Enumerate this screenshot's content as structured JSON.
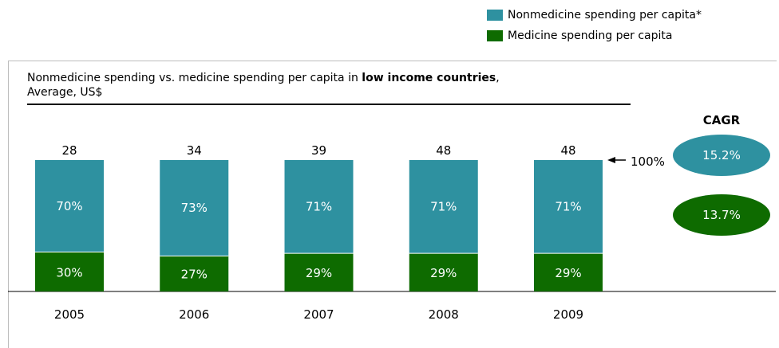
{
  "legend": {
    "items": [
      {
        "label": "Nonmedicine spending per capita*",
        "color": "#2e91a0"
      },
      {
        "label": "Medicine spending per capita",
        "color": "#0e6b00"
      }
    ]
  },
  "title": {
    "prefix": "Nonmedicine spending vs. medicine spending per capita in ",
    "bold": "low income countries",
    "suffix": ",",
    "line2": "Average, US$"
  },
  "annotation": {
    "arrow_label": "100%"
  },
  "cagr": {
    "heading": "CAGR",
    "values": [
      {
        "label": "15.2%",
        "color": "#2e91a0"
      },
      {
        "label": "13.7%",
        "color": "#0e6b00"
      }
    ]
  },
  "chart_data": {
    "type": "bar",
    "stacked": true,
    "normalized": true,
    "categories": [
      "2005",
      "2006",
      "2007",
      "2008",
      "2009"
    ],
    "totals": [
      28,
      34,
      39,
      48,
      48
    ],
    "series": [
      {
        "name": "Medicine spending per capita",
        "values": [
          30,
          27,
          29,
          29,
          29
        ],
        "labels": [
          "30%",
          "27%",
          "29%",
          "29%",
          "29%"
        ],
        "color": "#0e6b00"
      },
      {
        "name": "Nonmedicine spending per capita*",
        "values": [
          70,
          73,
          71,
          71,
          71
        ],
        "labels": [
          "70%",
          "73%",
          "71%",
          "71%",
          "71%"
        ],
        "color": "#2e91a0"
      }
    ],
    "ylim": [
      0,
      100
    ]
  }
}
